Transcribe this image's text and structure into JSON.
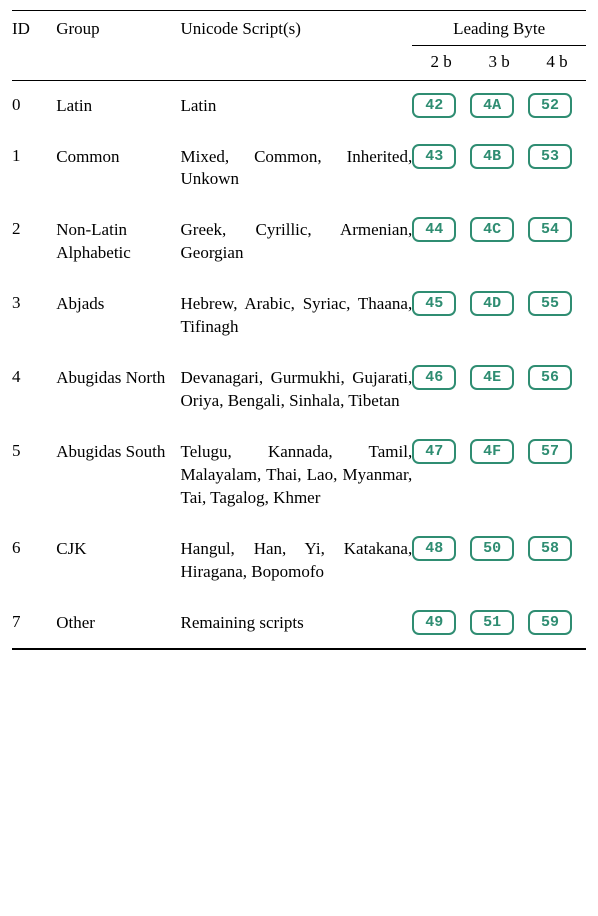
{
  "header": {
    "id": "ID",
    "group": "Group",
    "scripts": "Unicode Script(s)",
    "leading": "Leading Byte",
    "b2": "2 b",
    "b3": "3 b",
    "b4": "4 b"
  },
  "byte_style": {
    "border_color": "#2f8d72",
    "text_color": "#2f8d72",
    "bg_color": "#ffffff"
  },
  "rows": [
    {
      "id": "0",
      "group": "Latin",
      "scripts": "Latin",
      "b2": "42",
      "b3": "4A",
      "b4": "52"
    },
    {
      "id": "1",
      "group": "Common",
      "scripts": "Mixed, Common, Inherited, Unkown",
      "b2": "43",
      "b3": "4B",
      "b4": "53"
    },
    {
      "id": "2",
      "group": "Non-Latin Alphabetic",
      "scripts": "Greek, Cyrillic, Ar­menian, Georgian",
      "b2": "44",
      "b3": "4C",
      "b4": "54"
    },
    {
      "id": "3",
      "group": "Abjads",
      "scripts": "Hebrew, Arabic, Syriac, Thaana, Tifinagh",
      "b2": "45",
      "b3": "4D",
      "b4": "55"
    },
    {
      "id": "4",
      "group": "Abugidas North",
      "scripts": "Devanagari, Gur­mukhi, Gujarati, Oriya, Bengali, Sinhala, Tibetan",
      "b2": "46",
      "b3": "4E",
      "b4": "56"
    },
    {
      "id": "5",
      "group": "Abugidas South",
      "scripts": "Telugu, Kannada, Tamil, Malayalam, Thai, Lao, Myan­mar, Tai, Tagalog, Khmer",
      "b2": "47",
      "b3": "4F",
      "b4": "57"
    },
    {
      "id": "6",
      "group": "CJK",
      "scripts": "Hangul, Han, Yi, Katakana, Hiragana, Bopomofo",
      "b2": "48",
      "b3": "50",
      "b4": "58"
    },
    {
      "id": "7",
      "group": "Other",
      "scripts": "Remaining scripts",
      "b2": "49",
      "b3": "51",
      "b4": "59"
    }
  ]
}
